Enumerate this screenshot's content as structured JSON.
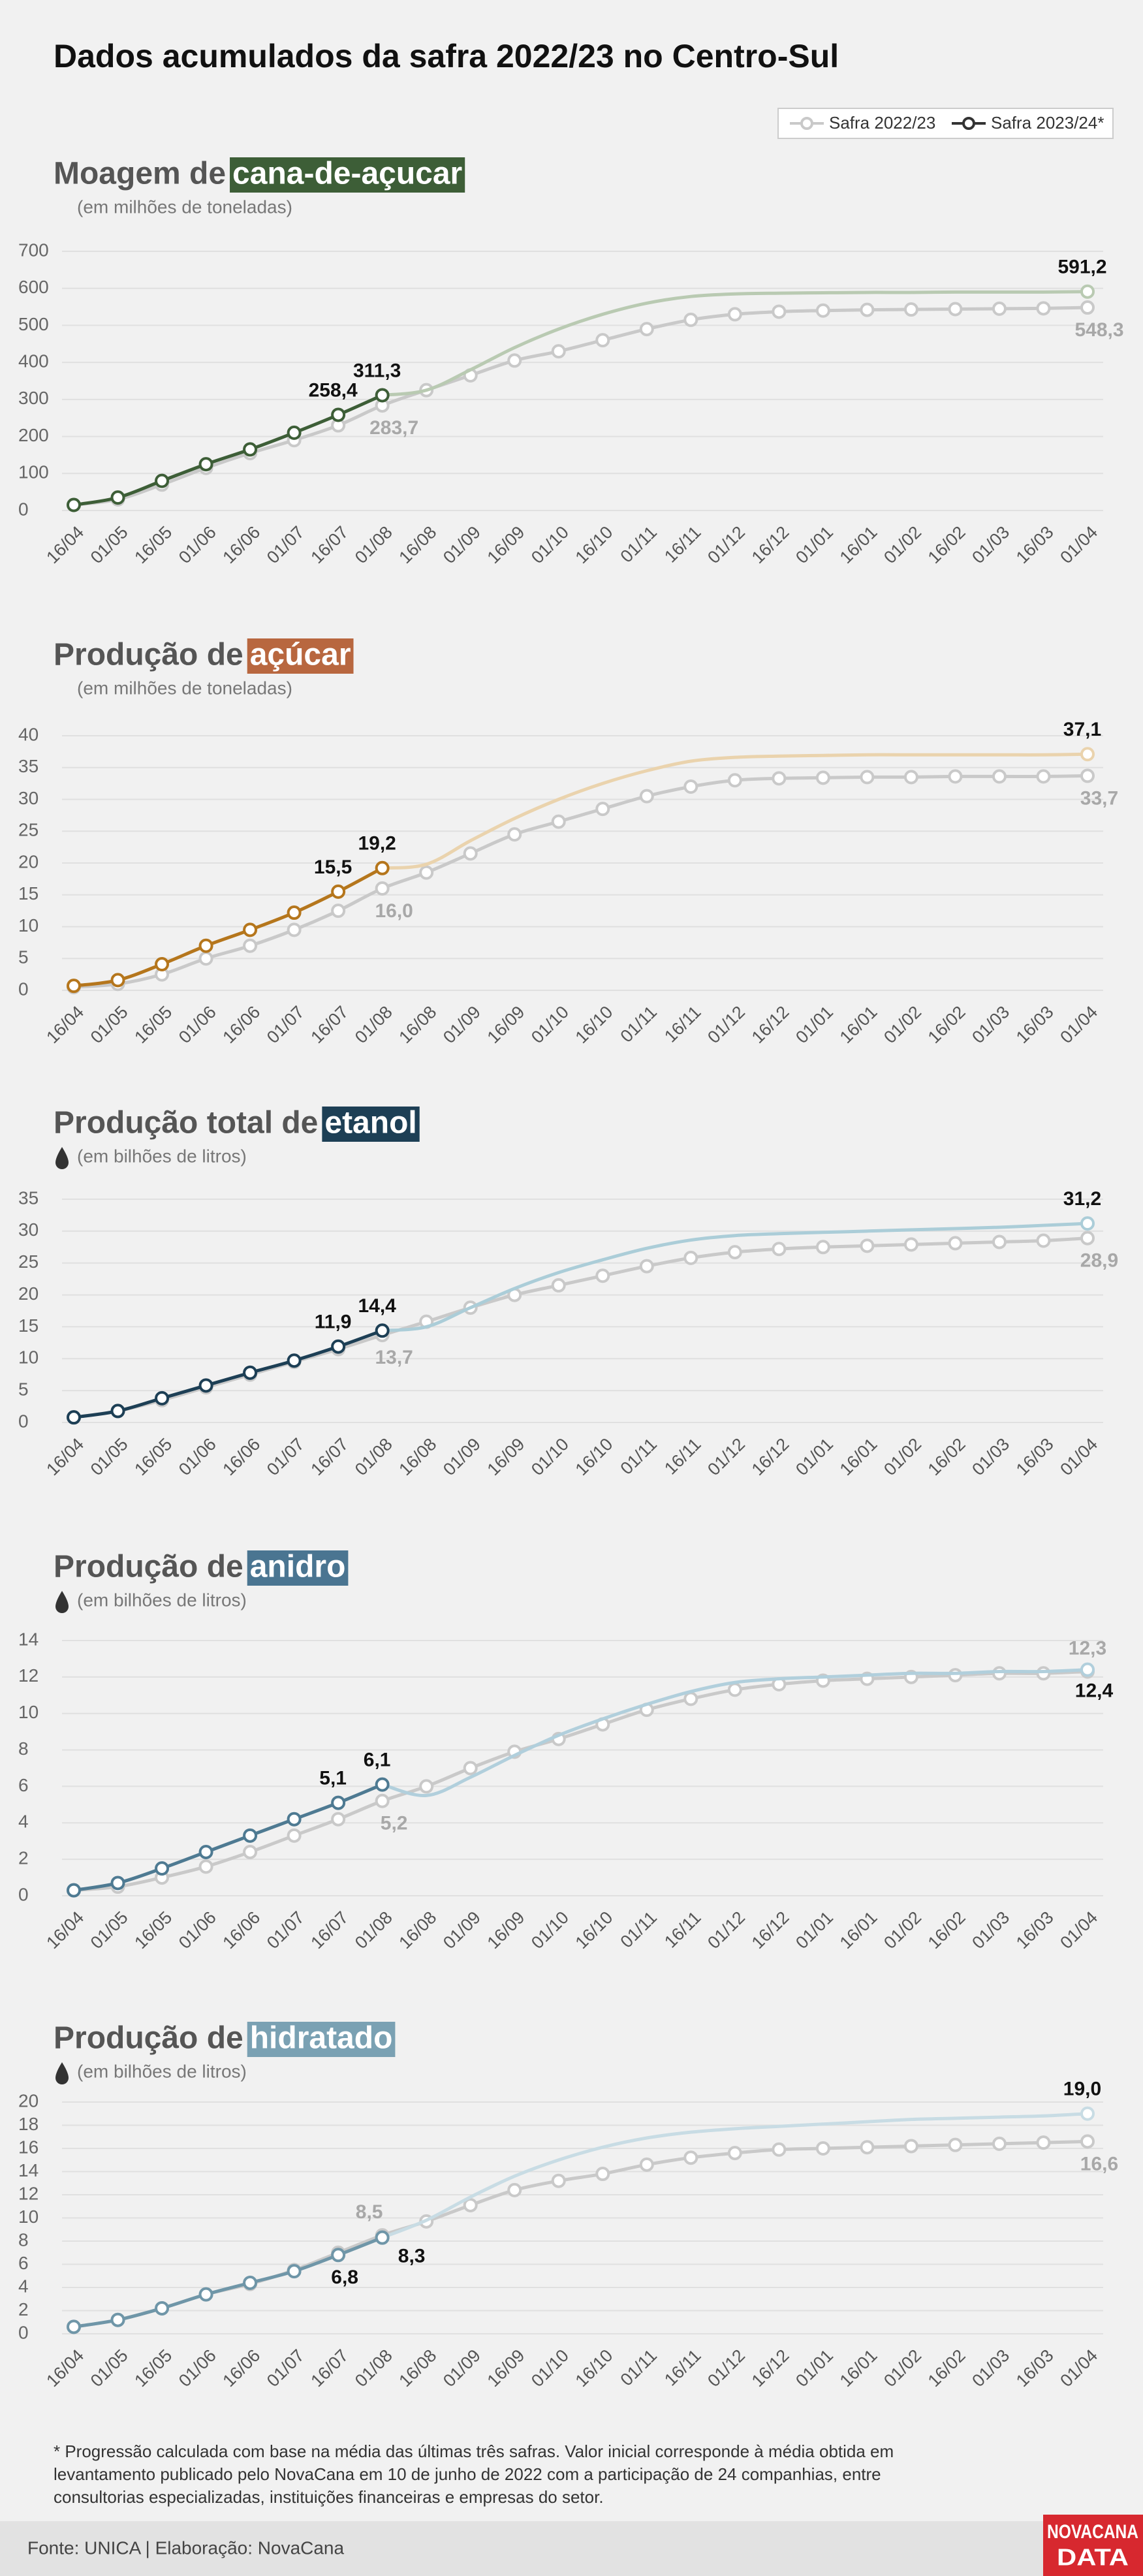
{
  "title": "Dados acumulados da safra 2022/23 no Centro-Sul",
  "footnote": [
    "* Progressão calculada com base na média das últimas três safras. Valor inicial corresponde à média obtida em",
    "levantamento publicado pelo NovaCana em 10 de junho de 2022 com a participação de 24 companhias, entre",
    "consultorias especializadas, instituições financeiras e empresas do setor."
  ],
  "source": "Fonte: UNICA | Elaboração: NovaCana",
  "logo": [
    "NOVACANA",
    "DATA"
  ],
  "chart_data": [
    {
      "type": "line",
      "title": "Moagem de",
      "title_highlight": "cana-de-açucar",
      "highlight_color": "#3d5e37",
      "subtitle": "(em milhões de toneladas)",
      "icon": null,
      "actual_count": 8,
      "categories": [
        "16/04",
        "01/05",
        "16/05",
        "01/06",
        "16/06",
        "01/07",
        "16/07",
        "01/08",
        "16/08",
        "01/09",
        "16/09",
        "01/10",
        "16/10",
        "01/11",
        "16/11",
        "01/12",
        "16/12",
        "01/01",
        "16/01",
        "01/02",
        "16/02",
        "01/03",
        "16/03",
        "01/04"
      ],
      "ylim": [
        0,
        700
      ],
      "yticks": [
        0,
        100,
        200,
        300,
        400,
        500,
        600,
        700
      ],
      "grid": true,
      "series": [
        {
          "name": "Safra 2022/23",
          "color": "#c9c9c9",
          "values": [
            15,
            30,
            70,
            115,
            155,
            190,
            230,
            283.7,
            325,
            365,
            405,
            430,
            460,
            490,
            515,
            530,
            537,
            540,
            542,
            543,
            544,
            545,
            546,
            548.3
          ],
          "value_labels": [
            null,
            null,
            null,
            null,
            null,
            null,
            null,
            "283,7",
            null,
            null,
            null,
            null,
            null,
            null,
            null,
            null,
            null,
            null,
            null,
            null,
            null,
            null,
            null,
            "548,3"
          ]
        },
        {
          "name": "Safra 2023/24*",
          "color": "#3d5e37",
          "projection_color": "#b9cab2",
          "values": [
            15,
            35,
            80,
            125,
            165,
            210,
            258.4,
            311.3,
            325,
            380,
            440,
            490,
            530,
            560,
            578,
            585,
            587,
            588,
            589,
            589,
            590,
            590,
            590,
            591.2
          ],
          "value_labels": [
            null,
            null,
            null,
            null,
            null,
            null,
            "258,4",
            "311,3",
            null,
            null,
            null,
            null,
            null,
            null,
            null,
            null,
            null,
            null,
            null,
            null,
            null,
            null,
            null,
            "591,2"
          ]
        }
      ]
    },
    {
      "type": "line",
      "title": "Produção de",
      "title_highlight": "açúcar",
      "highlight_color": "#b8673f",
      "subtitle": "(em milhões de toneladas)",
      "icon": null,
      "actual_count": 8,
      "categories": [
        "16/04",
        "01/05",
        "16/05",
        "01/06",
        "16/06",
        "01/07",
        "16/07",
        "01/08",
        "16/08",
        "01/09",
        "16/09",
        "01/10",
        "16/10",
        "01/11",
        "16/11",
        "01/12",
        "16/12",
        "01/01",
        "16/01",
        "01/02",
        "16/02",
        "01/03",
        "16/03",
        "01/04"
      ],
      "ylim": [
        0,
        40
      ],
      "yticks": [
        0,
        5,
        10,
        15,
        20,
        25,
        30,
        35,
        40
      ],
      "grid": true,
      "series": [
        {
          "name": "Safra 2022/23",
          "color": "#c9c9c9",
          "values": [
            0.5,
            1,
            2.5,
            5,
            7,
            9.5,
            12.5,
            16,
            18.5,
            21.5,
            24.5,
            26.5,
            28.5,
            30.5,
            32,
            33,
            33.3,
            33.4,
            33.5,
            33.5,
            33.6,
            33.6,
            33.6,
            33.7
          ],
          "value_labels": [
            null,
            null,
            null,
            null,
            null,
            null,
            null,
            "16,0",
            null,
            null,
            null,
            null,
            null,
            null,
            null,
            null,
            null,
            null,
            null,
            null,
            null,
            null,
            null,
            "33,7"
          ]
        },
        {
          "name": "Safra 2023/24*",
          "color": "#b5761c",
          "projection_color": "#ead3ad",
          "values": [
            0.7,
            1.6,
            4.1,
            7,
            9.5,
            12.2,
            15.5,
            19.2,
            19.8,
            23.5,
            27,
            30,
            32.5,
            34.5,
            36,
            36.6,
            36.8,
            36.9,
            37,
            37,
            37,
            37,
            37,
            37.1
          ],
          "value_labels": [
            null,
            null,
            null,
            null,
            null,
            null,
            "15,5",
            "19,2",
            null,
            null,
            null,
            null,
            null,
            null,
            null,
            null,
            null,
            null,
            null,
            null,
            null,
            null,
            null,
            "37,1"
          ]
        }
      ]
    },
    {
      "type": "line",
      "title": "Produção total de",
      "title_highlight": "etanol",
      "highlight_color": "#1d3f55",
      "subtitle": "(em bilhões de litros)",
      "icon": "drop",
      "actual_count": 8,
      "categories": [
        "16/04",
        "01/05",
        "16/05",
        "01/06",
        "16/06",
        "01/07",
        "16/07",
        "01/08",
        "16/08",
        "01/09",
        "16/09",
        "01/10",
        "16/10",
        "01/11",
        "16/11",
        "01/12",
        "16/12",
        "01/01",
        "16/01",
        "01/02",
        "16/02",
        "01/03",
        "16/03",
        "01/04"
      ],
      "ylim": [
        0,
        35
      ],
      "yticks": [
        0,
        5,
        10,
        15,
        20,
        25,
        30,
        35
      ],
      "grid": true,
      "series": [
        {
          "name": "Safra 2022/23",
          "color": "#c9c9c9",
          "values": [
            0.8,
            1.8,
            3.5,
            5.5,
            7.5,
            9.5,
            11.5,
            13.7,
            15.8,
            18,
            20,
            21.5,
            23,
            24.5,
            25.8,
            26.7,
            27.2,
            27.5,
            27.7,
            27.9,
            28.1,
            28.3,
            28.5,
            28.9
          ],
          "value_labels": [
            null,
            null,
            null,
            null,
            null,
            null,
            null,
            "13,7",
            null,
            null,
            null,
            null,
            null,
            null,
            null,
            null,
            null,
            null,
            null,
            null,
            null,
            null,
            null,
            "28,9"
          ]
        },
        {
          "name": "Safra 2023/24*",
          "color": "#1d3f55",
          "projection_color": "#abcdd8",
          "values": [
            0.8,
            1.8,
            3.8,
            5.8,
            7.8,
            9.7,
            11.9,
            14.4,
            15,
            18,
            21,
            23.5,
            25.5,
            27.3,
            28.6,
            29.3,
            29.6,
            29.8,
            30,
            30.2,
            30.4,
            30.6,
            30.9,
            31.2
          ],
          "value_labels": [
            null,
            null,
            null,
            null,
            null,
            null,
            "11,9",
            "14,4",
            null,
            null,
            null,
            null,
            null,
            null,
            null,
            null,
            null,
            null,
            null,
            null,
            null,
            null,
            null,
            "31,2"
          ]
        }
      ]
    },
    {
      "type": "line",
      "title": "Produção de",
      "title_highlight": "anidro",
      "highlight_color": "#4a7591",
      "subtitle": "(em bilhões de litros)",
      "icon": "drop",
      "actual_count": 8,
      "categories": [
        "16/04",
        "01/05",
        "16/05",
        "01/06",
        "16/06",
        "01/07",
        "16/07",
        "01/08",
        "16/08",
        "01/09",
        "16/09",
        "01/10",
        "16/10",
        "01/11",
        "16/11",
        "01/12",
        "16/12",
        "01/01",
        "16/01",
        "01/02",
        "16/02",
        "01/03",
        "16/03",
        "01/04"
      ],
      "ylim": [
        0,
        14
      ],
      "yticks": [
        0,
        2,
        4,
        6,
        8,
        10,
        12,
        14
      ],
      "grid": true,
      "series": [
        {
          "name": "Safra 2022/23",
          "color": "#c9c9c9",
          "values": [
            0.3,
            0.5,
            1,
            1.6,
            2.4,
            3.3,
            4.2,
            5.2,
            6,
            7,
            7.9,
            8.6,
            9.4,
            10.2,
            10.8,
            11.3,
            11.6,
            11.8,
            11.9,
            12,
            12.1,
            12.2,
            12.2,
            12.3
          ],
          "value_labels": [
            null,
            null,
            null,
            null,
            null,
            null,
            null,
            "5,2",
            null,
            null,
            null,
            null,
            null,
            null,
            null,
            null,
            null,
            null,
            null,
            null,
            null,
            null,
            null,
            "12,3"
          ]
        },
        {
          "name": "Safra 2023/24*",
          "color": "#4e7a92",
          "projection_color": "#b1cfdc",
          "values": [
            0.3,
            0.7,
            1.5,
            2.4,
            3.3,
            4.2,
            5.1,
            6.1,
            5.5,
            6.5,
            7.7,
            8.8,
            9.7,
            10.5,
            11.2,
            11.7,
            11.9,
            12,
            12.1,
            12.2,
            12.2,
            12.3,
            12.3,
            12.4
          ],
          "value_labels": [
            null,
            null,
            null,
            null,
            null,
            null,
            "5,1",
            "6,1",
            null,
            null,
            null,
            null,
            null,
            null,
            null,
            null,
            null,
            null,
            null,
            null,
            null,
            null,
            null,
            "12,4"
          ]
        }
      ]
    },
    {
      "type": "line",
      "title": "Produção de",
      "title_highlight": "hidratado",
      "highlight_color": "#7aa1b3",
      "subtitle": "(em bilhões de litros)",
      "icon": "drop",
      "actual_count": 8,
      "categories": [
        "16/04",
        "01/05",
        "16/05",
        "01/06",
        "16/06",
        "01/07",
        "16/07",
        "01/08",
        "16/08",
        "01/09",
        "16/09",
        "01/10",
        "16/10",
        "01/11",
        "16/11",
        "01/12",
        "16/12",
        "01/01",
        "16/01",
        "01/02",
        "16/02",
        "01/03",
        "16/03",
        "01/04"
      ],
      "ylim": [
        0,
        20
      ],
      "yticks": [
        0,
        2,
        4,
        6,
        8,
        10,
        12,
        14,
        16,
        18,
        20
      ],
      "grid": true,
      "series": [
        {
          "name": "Safra 2022/23",
          "color": "#c9c9c9",
          "values": [
            0.6,
            1.2,
            2.2,
            3.4,
            4.3,
            5.5,
            7,
            8.5,
            9.7,
            11.1,
            12.4,
            13.2,
            13.8,
            14.6,
            15.2,
            15.6,
            15.9,
            16,
            16.1,
            16.2,
            16.3,
            16.4,
            16.5,
            16.6
          ],
          "value_labels": [
            null,
            null,
            null,
            null,
            null,
            null,
            null,
            "8,5",
            null,
            null,
            null,
            null,
            null,
            null,
            null,
            null,
            null,
            null,
            null,
            null,
            null,
            null,
            null,
            "16,6"
          ]
        },
        {
          "name": "Safra 2023/24*",
          "color": "#6f96a8",
          "projection_color": "#c8dce4",
          "values": [
            0.6,
            1.2,
            2.2,
            3.4,
            4.4,
            5.4,
            6.8,
            8.3,
            9.8,
            11.8,
            13.6,
            15,
            16.1,
            16.9,
            17.4,
            17.7,
            17.9,
            18.1,
            18.3,
            18.5,
            18.6,
            18.7,
            18.8,
            19
          ],
          "value_labels": [
            null,
            null,
            null,
            null,
            null,
            null,
            "6,8",
            "8,3",
            null,
            null,
            null,
            null,
            null,
            null,
            null,
            null,
            null,
            null,
            null,
            null,
            null,
            null,
            null,
            "19,0"
          ]
        }
      ]
    }
  ]
}
